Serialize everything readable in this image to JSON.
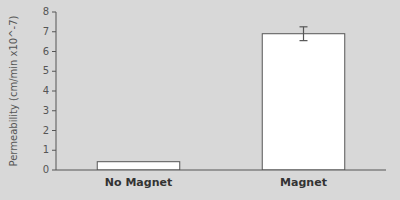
{
  "chart_data": {
    "type": "bar",
    "categories": [
      "No Magnet",
      "Magnet"
    ],
    "values": [
      0.42,
      6.9
    ],
    "errors": [
      null,
      0.35
    ],
    "color": "#ffffff",
    "ylabel": "Permeability (cm/min x10^-7)",
    "ylim": [
      0,
      8
    ],
    "yticks": [
      0,
      1,
      2,
      3,
      4,
      5,
      6,
      7,
      8
    ],
    "grid": false
  }
}
